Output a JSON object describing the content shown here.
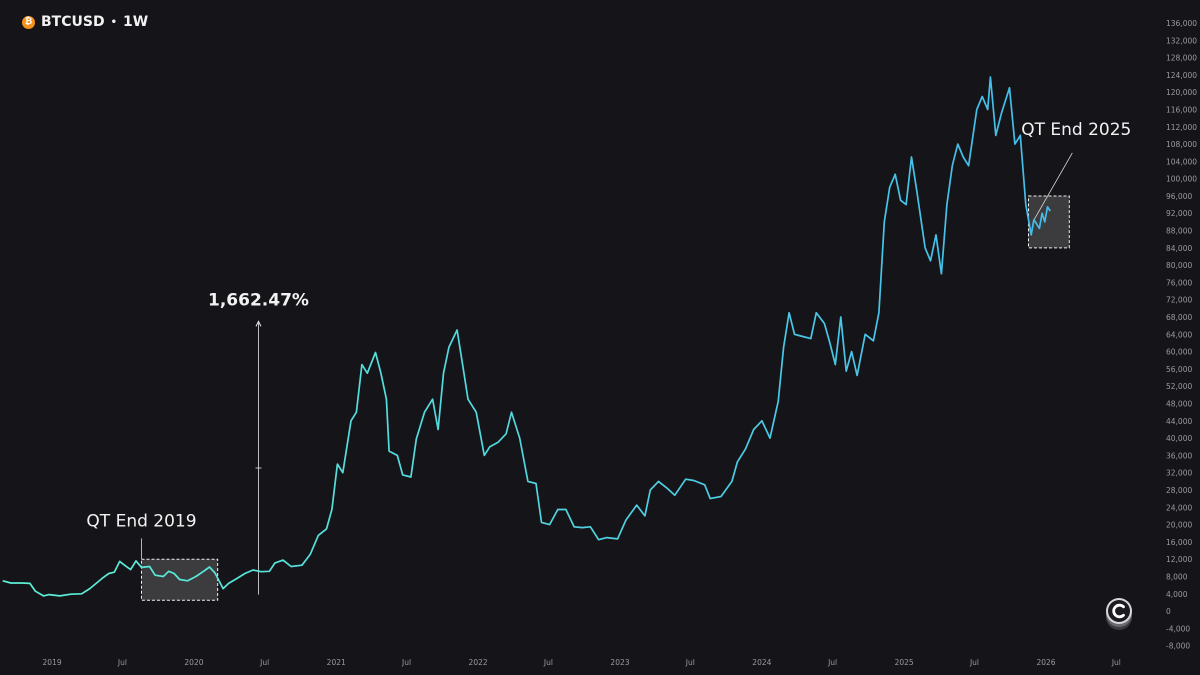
{
  "header": {
    "symbol": "BTCUSD",
    "separator": "•",
    "timeframe": "1W",
    "coin_icon": "bitcoin-icon"
  },
  "colors": {
    "background": "#151519",
    "line_start": "#5ef0d6",
    "line_end": "#3fb4ee",
    "text": "#e6e6e6",
    "axis_text": "#9a9aa0"
  },
  "chart_data": {
    "type": "line",
    "title": "",
    "xlabel": "",
    "ylabel": "",
    "ylim": [
      -9000,
      139000
    ],
    "xlim": [
      "2018-08-20",
      "2026-09-05"
    ],
    "y_ticks": [
      "136,000",
      "132,000",
      "128,000",
      "124,000",
      "120,000",
      "116,000",
      "112,000",
      "108,000",
      "104,000",
      "100,000",
      "96,000",
      "92,000",
      "88,000",
      "84,000",
      "80,000",
      "76,000",
      "72,000",
      "68,000",
      "64,000",
      "60,000",
      "56,000",
      "52,000",
      "48,000",
      "44,000",
      "40,000",
      "36,000",
      "32,000",
      "28,000",
      "24,000",
      "20,000",
      "16,000",
      "12,000",
      "8,000",
      "4,000",
      "0",
      "-4,000",
      "-8,000"
    ],
    "x_ticks": [
      {
        "label": "2019",
        "date": "2019-01-01"
      },
      {
        "label": "Jul",
        "date": "2019-07-01"
      },
      {
        "label": "2020",
        "date": "2020-01-01"
      },
      {
        "label": "Jul",
        "date": "2020-07-01"
      },
      {
        "label": "2021",
        "date": "2021-01-01"
      },
      {
        "label": "Jul",
        "date": "2021-07-01"
      },
      {
        "label": "2022",
        "date": "2022-01-01"
      },
      {
        "label": "Jul",
        "date": "2022-07-01"
      },
      {
        "label": "2023",
        "date": "2023-01-01"
      },
      {
        "label": "Jul",
        "date": "2023-07-01"
      },
      {
        "label": "2024",
        "date": "2024-01-01"
      },
      {
        "label": "Jul",
        "date": "2024-07-01"
      },
      {
        "label": "2025",
        "date": "2025-01-01"
      },
      {
        "label": "Jul",
        "date": "2025-07-01"
      },
      {
        "label": "2026",
        "date": "2026-01-01"
      },
      {
        "label": "Jul",
        "date": "2026-07-01"
      }
    ],
    "series": [
      {
        "points": [
          [
            "2018-08-27",
            7000
          ],
          [
            "2018-09-17",
            6500
          ],
          [
            "2018-10-15",
            6500
          ],
          [
            "2018-11-05",
            6400
          ],
          [
            "2018-11-19",
            4600
          ],
          [
            "2018-12-10",
            3500
          ],
          [
            "2018-12-24",
            3800
          ],
          [
            "2019-01-21",
            3500
          ],
          [
            "2019-02-18",
            3900
          ],
          [
            "2019-03-18",
            4000
          ],
          [
            "2019-04-08",
            5200
          ],
          [
            "2019-05-13",
            7800
          ],
          [
            "2019-05-27",
            8700
          ],
          [
            "2019-06-10",
            9000
          ],
          [
            "2019-06-24",
            11500
          ],
          [
            "2019-07-08",
            10500
          ],
          [
            "2019-07-22",
            9600
          ],
          [
            "2019-08-05",
            11600
          ],
          [
            "2019-08-19",
            10100
          ],
          [
            "2019-09-09",
            10300
          ],
          [
            "2019-09-23",
            8300
          ],
          [
            "2019-10-14",
            8000
          ],
          [
            "2019-10-28",
            9200
          ],
          [
            "2019-11-11",
            8700
          ],
          [
            "2019-11-25",
            7300
          ],
          [
            "2019-12-16",
            7000
          ],
          [
            "2020-01-06",
            8000
          ],
          [
            "2020-01-27",
            9300
          ],
          [
            "2020-02-10",
            10200
          ],
          [
            "2020-02-24",
            8800
          ],
          [
            "2020-03-16",
            5200
          ],
          [
            "2020-03-30",
            6400
          ],
          [
            "2020-04-20",
            7500
          ],
          [
            "2020-05-11",
            8700
          ],
          [
            "2020-06-01",
            9500
          ],
          [
            "2020-06-22",
            9100
          ],
          [
            "2020-07-13",
            9200
          ],
          [
            "2020-07-27",
            11100
          ],
          [
            "2020-08-17",
            11800
          ],
          [
            "2020-09-07",
            10300
          ],
          [
            "2020-10-05",
            10600
          ],
          [
            "2020-10-26",
            13100
          ],
          [
            "2020-11-16",
            17500
          ],
          [
            "2020-12-07",
            19000
          ],
          [
            "2020-12-21",
            23500
          ],
          [
            "2021-01-04",
            34000
          ],
          [
            "2021-01-18",
            32000
          ],
          [
            "2021-02-08",
            44000
          ],
          [
            "2021-02-22",
            46000
          ],
          [
            "2021-03-08",
            57000
          ],
          [
            "2021-03-22",
            55000
          ],
          [
            "2021-04-12",
            59800
          ],
          [
            "2021-04-26",
            55000
          ],
          [
            "2021-05-10",
            49000
          ],
          [
            "2021-05-17",
            37000
          ],
          [
            "2021-06-07",
            36000
          ],
          [
            "2021-06-21",
            31500
          ],
          [
            "2021-07-12",
            31000
          ],
          [
            "2021-07-26",
            39800
          ],
          [
            "2021-08-16",
            46000
          ],
          [
            "2021-09-06",
            49000
          ],
          [
            "2021-09-20",
            42000
          ],
          [
            "2021-10-04",
            55000
          ],
          [
            "2021-10-18",
            61000
          ],
          [
            "2021-11-08",
            65000
          ],
          [
            "2021-11-22",
            57000
          ],
          [
            "2021-12-06",
            49000
          ],
          [
            "2021-12-27",
            46000
          ],
          [
            "2022-01-17",
            36000
          ],
          [
            "2022-01-31",
            38000
          ],
          [
            "2022-02-21",
            39000
          ],
          [
            "2022-03-14",
            41000
          ],
          [
            "2022-03-28",
            46000
          ],
          [
            "2022-04-18",
            40000
          ],
          [
            "2022-05-09",
            30000
          ],
          [
            "2022-05-30",
            29500
          ],
          [
            "2022-06-13",
            20500
          ],
          [
            "2022-07-04",
            20000
          ],
          [
            "2022-07-25",
            23500
          ],
          [
            "2022-08-15",
            23500
          ],
          [
            "2022-09-05",
            19500
          ],
          [
            "2022-09-26",
            19300
          ],
          [
            "2022-10-17",
            19500
          ],
          [
            "2022-11-07",
            16500
          ],
          [
            "2022-11-28",
            17000
          ],
          [
            "2022-12-26",
            16700
          ],
          [
            "2023-01-16",
            21000
          ],
          [
            "2023-02-13",
            24500
          ],
          [
            "2023-03-06",
            22000
          ],
          [
            "2023-03-20",
            28000
          ],
          [
            "2023-04-10",
            30000
          ],
          [
            "2023-05-01",
            28500
          ],
          [
            "2023-05-22",
            26800
          ],
          [
            "2023-06-19",
            30500
          ],
          [
            "2023-07-10",
            30200
          ],
          [
            "2023-08-07",
            29200
          ],
          [
            "2023-08-21",
            26000
          ],
          [
            "2023-09-18",
            26500
          ],
          [
            "2023-10-16",
            30000
          ],
          [
            "2023-10-30",
            34500
          ],
          [
            "2023-11-20",
            37500
          ],
          [
            "2023-12-11",
            42000
          ],
          [
            "2024-01-01",
            44000
          ],
          [
            "2024-01-22",
            40000
          ],
          [
            "2024-02-12",
            48500
          ],
          [
            "2024-02-26",
            61000
          ],
          [
            "2024-03-11",
            69000
          ],
          [
            "2024-03-25",
            64000
          ],
          [
            "2024-04-15",
            63500
          ],
          [
            "2024-05-06",
            63000
          ],
          [
            "2024-05-20",
            69000
          ],
          [
            "2024-06-10",
            66500
          ],
          [
            "2024-06-24",
            62000
          ],
          [
            "2024-07-08",
            57000
          ],
          [
            "2024-07-22",
            68000
          ],
          [
            "2024-08-05",
            55500
          ],
          [
            "2024-08-19",
            60000
          ],
          [
            "2024-09-02",
            54500
          ],
          [
            "2024-09-23",
            64000
          ],
          [
            "2024-10-14",
            62500
          ],
          [
            "2024-10-28",
            69000
          ],
          [
            "2024-11-11",
            90000
          ],
          [
            "2024-11-25",
            98000
          ],
          [
            "2024-12-09",
            101000
          ],
          [
            "2024-12-23",
            95000
          ],
          [
            "2025-01-06",
            94000
          ],
          [
            "2025-01-20",
            105000
          ],
          [
            "2025-02-03",
            97000
          ],
          [
            "2025-02-24",
            84000
          ],
          [
            "2025-03-10",
            81000
          ],
          [
            "2025-03-24",
            87000
          ],
          [
            "2025-04-07",
            78000
          ],
          [
            "2025-04-21",
            94000
          ],
          [
            "2025-05-05",
            103000
          ],
          [
            "2025-05-19",
            108000
          ],
          [
            "2025-06-02",
            105000
          ],
          [
            "2025-06-16",
            103000
          ],
          [
            "2025-07-07",
            116000
          ],
          [
            "2025-07-21",
            119000
          ],
          [
            "2025-08-04",
            116000
          ],
          [
            "2025-08-11",
            123500
          ],
          [
            "2025-08-25",
            110000
          ],
          [
            "2025-09-08",
            115000
          ],
          [
            "2025-09-29",
            121000
          ],
          [
            "2025-10-13",
            108000
          ],
          [
            "2025-10-27",
            110000
          ],
          [
            "2025-11-10",
            94000
          ],
          [
            "2025-11-24",
            87000
          ],
          [
            "2025-12-01",
            90500
          ],
          [
            "2025-12-08",
            89500
          ],
          [
            "2025-12-15",
            88500
          ],
          [
            "2025-12-22",
            92000
          ],
          [
            "2025-12-29",
            90000
          ],
          [
            "2026-01-05",
            93500
          ],
          [
            "2026-01-12",
            92500
          ]
        ]
      }
    ],
    "annotations": {
      "box_2019": {
        "x0": "2019-08-19",
        "x1": "2020-03-02",
        "y0": 2500,
        "y1": 12000
      },
      "label_2019": {
        "text": "QT End 2019",
        "x": "2019-08-19",
        "y_top": 20500
      },
      "box_2025": {
        "x0": "2025-11-17",
        "x1": "2026-03-02",
        "y0": 84000,
        "y1": 96000
      },
      "label_2025": {
        "text": "QT End 2025",
        "x": "2026-03-20",
        "y_text": 111500
      },
      "measure": {
        "text": "1,662.47%",
        "x": "2020-06-15",
        "y_start": 3800,
        "y_end": 67000
      }
    }
  }
}
